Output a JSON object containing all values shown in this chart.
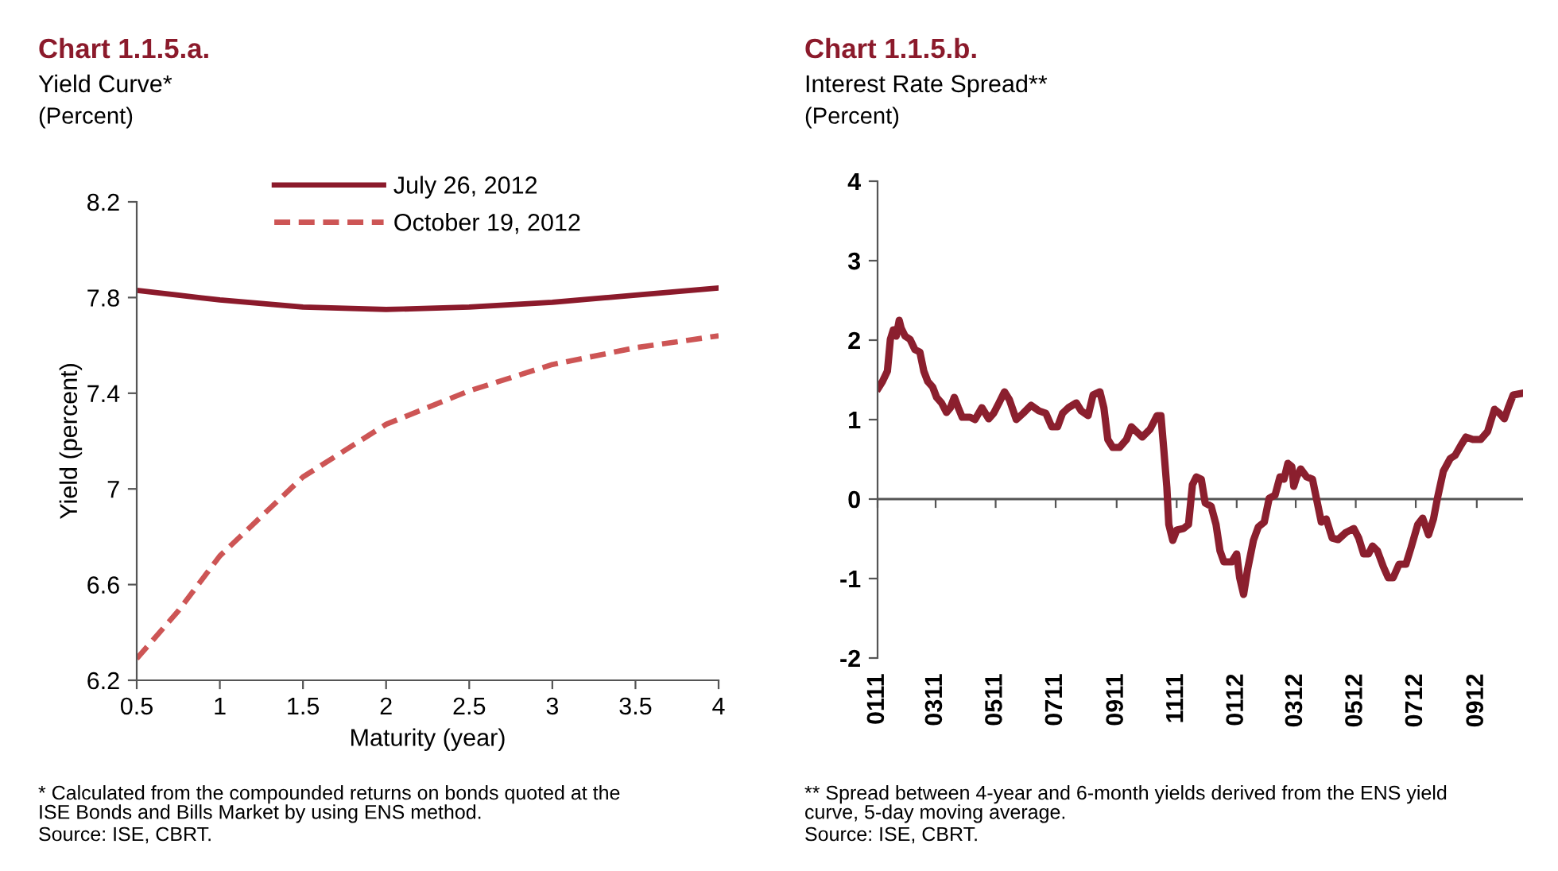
{
  "chart_data": [
    {
      "type": "line",
      "title": "Chart 1.1.5.a.",
      "subtitle": "Yield Curve*",
      "xlabel": "Maturity (year)",
      "ylabel": "Yield (percent)",
      "annotations": [
        "(Percent)",
        "* Calculated from the compounded returns on bonds quoted at the\nISE Bonds and Bills Market by using ENS method.",
        "Source: ISE, CBRT."
      ],
      "x": [
        0.5,
        0.75,
        1.0,
        1.5,
        2.0,
        2.5,
        3.0,
        3.5,
        4.0
      ],
      "series": [
        {
          "name": "July 26, 2012",
          "color": "#8b1a2b",
          "line_style": "solid",
          "values": [
            7.83,
            7.81,
            7.79,
            7.76,
            7.75,
            7.76,
            7.78,
            7.81,
            7.84
          ]
        },
        {
          "name": "October 19, 2012",
          "color": "#cd5555",
          "line_style": "dashed",
          "values": [
            6.29,
            6.49,
            6.72,
            7.05,
            7.27,
            7.41,
            7.52,
            7.59,
            7.64
          ]
        }
      ],
      "xlim": [
        0.5,
        4
      ],
      "xticks": [
        0.5,
        1,
        1.5,
        2,
        2.5,
        3,
        3.5,
        4
      ],
      "ylim": [
        6.2,
        8.2
      ],
      "yticks": [
        6.2,
        6.6,
        7,
        7.4,
        7.8,
        8.2
      ],
      "legend": "top",
      "grid": false,
      "marker": "none"
    },
    {
      "type": "line",
      "title": "Chart 1.1.5.b.",
      "subtitle": "Interest Rate Spread**",
      "annotations": [
        "(Percent)",
        "** Spread between 4-year and 6-month yields derived from the ENS yield\ncurve, 5-day moving average.",
        "Source: ISE, CBRT."
      ],
      "x": [
        "2011-01-02",
        "2011-01-06",
        "2011-01-11",
        "2011-01-14",
        "2011-01-17",
        "2011-01-20",
        "2011-01-23",
        "2011-01-25",
        "2011-01-29",
        "2011-02-03",
        "2011-02-08",
        "2011-02-13",
        "2011-02-17",
        "2011-02-21",
        "2011-02-26",
        "2011-03-02",
        "2011-03-07",
        "2011-03-12",
        "2011-03-16",
        "2011-03-20",
        "2011-03-24",
        "2011-03-28",
        "2011-04-05",
        "2011-04-10",
        "2011-04-17",
        "2011-04-24",
        "2011-04-29",
        "2011-05-04",
        "2011-05-10",
        "2011-05-15",
        "2011-05-22",
        "2011-05-29",
        "2011-06-06",
        "2011-06-14",
        "2011-06-21",
        "2011-06-27",
        "2011-07-03",
        "2011-07-08",
        "2011-07-14",
        "2011-07-22",
        "2011-07-27",
        "2011-08-03",
        "2011-08-08",
        "2011-08-15",
        "2011-08-19",
        "2011-08-23",
        "2011-08-28",
        "2011-09-04",
        "2011-09-11",
        "2011-09-16",
        "2011-09-21",
        "2011-09-27",
        "2011-10-05",
        "2011-10-12",
        "2011-10-16",
        "2011-10-19",
        "2011-10-22",
        "2011-10-24",
        "2011-10-28",
        "2011-11-01",
        "2011-11-08",
        "2011-11-13",
        "2011-11-17",
        "2011-11-21",
        "2011-11-26",
        "2011-11-30",
        "2011-12-06",
        "2011-12-11",
        "2011-12-15",
        "2011-12-19",
        "2011-12-27",
        "2012-01-01",
        "2012-01-04",
        "2012-01-08",
        "2012-01-12",
        "2012-01-18",
        "2012-01-23",
        "2012-01-29",
        "2012-02-03",
        "2012-02-09",
        "2012-02-14",
        "2012-02-18",
        "2012-02-22",
        "2012-02-26",
        "2012-02-28",
        "2012-03-02",
        "2012-03-06",
        "2012-03-12",
        "2012-03-18",
        "2012-03-22",
        "2012-03-27",
        "2012-04-01",
        "2012-04-07",
        "2012-04-13",
        "2012-04-21",
        "2012-04-29",
        "2012-05-04",
        "2012-05-09",
        "2012-05-14",
        "2012-05-18",
        "2012-05-23",
        "2012-05-29",
        "2012-06-03",
        "2012-06-08",
        "2012-06-14",
        "2012-06-21",
        "2012-06-26",
        "2012-07-03",
        "2012-07-08",
        "2012-07-14",
        "2012-07-19",
        "2012-07-23",
        "2012-07-29",
        "2012-08-05",
        "2012-08-10",
        "2012-08-16",
        "2012-08-21",
        "2012-08-28",
        "2012-09-05",
        "2012-09-12",
        "2012-09-19",
        "2012-09-24",
        "2012-09-29",
        "2012-10-03",
        "2012-10-08",
        "2012-10-17"
      ],
      "series": [
        {
          "color": "#8b1f2e",
          "values": [
            1.4,
            1.48,
            1.61,
            2.01,
            2.13,
            2.05,
            2.25,
            2.15,
            2.05,
            2.01,
            1.88,
            1.85,
            1.61,
            1.48,
            1.41,
            1.28,
            1.21,
            1.09,
            1.15,
            1.28,
            1.15,
            1.03,
            1.03,
            1.0,
            1.15,
            1.01,
            1.08,
            1.2,
            1.35,
            1.25,
            1.0,
            1.08,
            1.18,
            1.11,
            1.08,
            0.91,
            0.91,
            1.08,
            1.15,
            1.21,
            1.11,
            1.05,
            1.31,
            1.35,
            1.15,
            0.75,
            0.65,
            0.65,
            0.75,
            0.91,
            0.85,
            0.78,
            0.88,
            1.05,
            1.05,
            0.61,
            0.15,
            -0.32,
            -0.52,
            -0.39,
            -0.37,
            -0.32,
            0.18,
            0.28,
            0.25,
            -0.05,
            -0.09,
            -0.32,
            -0.65,
            -0.79,
            -0.79,
            -0.69,
            -0.99,
            -1.2,
            -0.89,
            -0.52,
            -0.35,
            -0.29,
            0.01,
            0.05,
            0.28,
            0.25,
            0.45,
            0.41,
            0.16,
            0.28,
            0.38,
            0.28,
            0.25,
            0.01,
            -0.29,
            -0.25,
            -0.49,
            -0.51,
            -0.42,
            -0.37,
            -0.49,
            -0.69,
            -0.69,
            -0.59,
            -0.65,
            -0.85,
            -0.99,
            -0.99,
            -0.82,
            -0.82,
            -0.62,
            -0.32,
            -0.24,
            -0.45,
            -0.25,
            0.01,
            0.35,
            0.51,
            0.55,
            0.68,
            0.78,
            0.75,
            0.75,
            0.85,
            1.13,
            1.08,
            1.01,
            1.15,
            1.31,
            1.33
          ]
        }
      ],
      "xlim": [
        "2011-01-01",
        "2012-10-18"
      ],
      "xticks": [
        {
          "value": "2011-01-01",
          "label": "0111"
        },
        {
          "value": "2011-03-01",
          "label": "0311"
        },
        {
          "value": "2011-05-01",
          "label": "0511"
        },
        {
          "value": "2011-07-01",
          "label": "0711"
        },
        {
          "value": "2011-09-01",
          "label": "0911"
        },
        {
          "value": "2011-11-01",
          "label": "1111"
        },
        {
          "value": "2012-01-01",
          "label": "0112"
        },
        {
          "value": "2012-03-01",
          "label": "0312"
        },
        {
          "value": "2012-05-01",
          "label": "0512"
        },
        {
          "value": "2012-07-01",
          "label": "0712"
        },
        {
          "value": "2012-09-01",
          "label": "0912"
        }
      ],
      "ylim": [
        -2,
        4
      ],
      "yticks": [
        -2,
        -1,
        0,
        1,
        2,
        3,
        4
      ],
      "ref_lines": [
        {
          "axis": "y",
          "value": 0,
          "color": "#555555",
          "line_style": "solid"
        }
      ],
      "grid": false,
      "marker": "none"
    }
  ]
}
